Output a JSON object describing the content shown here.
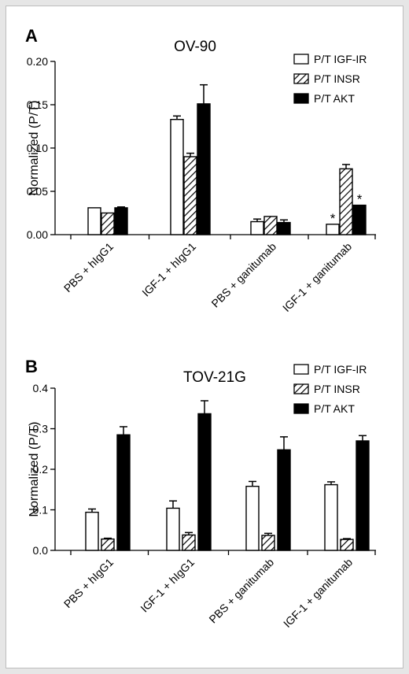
{
  "chart_data": [
    {
      "type": "bar",
      "panel": "A",
      "title": "OV-90",
      "ylabel": "Normalized (P/T)",
      "xlabel": "",
      "ylim": [
        0,
        0.2
      ],
      "yticks": [
        "0.00",
        "0.05",
        "0.10",
        "0.15",
        "0.20"
      ],
      "categories": [
        "PBS + hIgG1",
        "IGF-1 + hIgG1",
        "PBS + ganitumab",
        "IGF-1 + ganitumab"
      ],
      "series": [
        {
          "name": "P/T IGF-IR",
          "style": "open",
          "values": [
            0.031,
            0.133,
            0.015,
            0.012
          ],
          "errors": [
            0.0,
            0.004,
            0.003,
            0.0
          ]
        },
        {
          "name": "P/T INSR",
          "style": "hatched",
          "values": [
            0.025,
            0.09,
            0.021,
            0.076
          ],
          "errors": [
            0.0,
            0.004,
            0.0,
            0.005
          ]
        },
        {
          "name": "P/T AKT",
          "style": "solid",
          "values": [
            0.031,
            0.151,
            0.014,
            0.034
          ],
          "errors": [
            0.001,
            0.022,
            0.003,
            0.0
          ]
        }
      ],
      "annotations": [
        {
          "text": "*",
          "category": 3,
          "series": 0
        },
        {
          "text": "*",
          "category": 3,
          "series": 2
        }
      ],
      "legend_position": "top-right",
      "grid": false
    },
    {
      "type": "bar",
      "panel": "B",
      "title": "TOV-21G",
      "ylabel": "Normalized (P/T)",
      "xlabel": "",
      "ylim": [
        0,
        0.4
      ],
      "yticks": [
        "0.0",
        "0.1",
        "0.2",
        "0.3",
        "0.4"
      ],
      "categories": [
        "PBS + hIgG1",
        "IGF-1 + hIgG1",
        "PBS + ganitumab",
        "IGF-1 + ganitumab"
      ],
      "series": [
        {
          "name": "P/T IGF-IR",
          "style": "open",
          "values": [
            0.094,
            0.104,
            0.158,
            0.162
          ],
          "errors": [
            0.008,
            0.018,
            0.012,
            0.007
          ]
        },
        {
          "name": "P/T INSR",
          "style": "hatched",
          "values": [
            0.028,
            0.038,
            0.037,
            0.027
          ],
          "errors": [
            0.002,
            0.006,
            0.005,
            0.002
          ]
        },
        {
          "name": "P/T AKT",
          "style": "solid",
          "values": [
            0.285,
            0.337,
            0.248,
            0.27
          ],
          "errors": [
            0.02,
            0.032,
            0.032,
            0.013
          ]
        }
      ],
      "annotations": [],
      "legend_position": "top-right",
      "grid": false
    }
  ]
}
